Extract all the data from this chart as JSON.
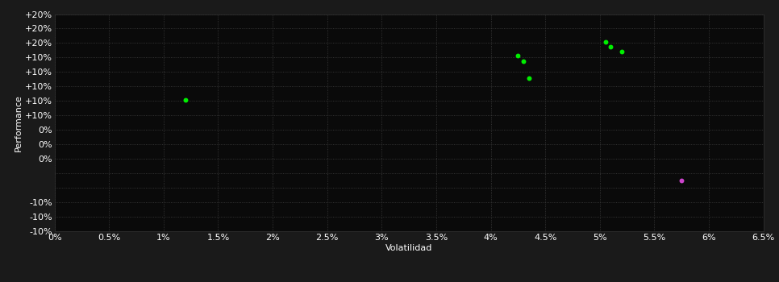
{
  "background_color": "#1a1a1a",
  "plot_bg_color": "#0a0a0a",
  "grid_color": "#404040",
  "text_color": "#ffffff",
  "xlabel": "Volatilidad",
  "ylabel": "Performance",
  "xlim": [
    0,
    0.065
  ],
  "ylim": [
    -0.1,
    0.2
  ],
  "xticks": [
    0.0,
    0.005,
    0.01,
    0.015,
    0.02,
    0.025,
    0.03,
    0.035,
    0.04,
    0.045,
    0.05,
    0.055,
    0.06,
    0.065
  ],
  "xtick_labels": [
    "0%",
    "0.5%",
    "1%",
    "1.5%",
    "2%",
    "2.5%",
    "3%",
    "3.5%",
    "4%",
    "4.5%",
    "5%",
    "5.5%",
    "6%",
    "6.5%"
  ],
  "yticks": [
    -0.1,
    -0.08,
    -0.06,
    -0.04,
    -0.02,
    0.0,
    0.02,
    0.04,
    0.06,
    0.08,
    0.1,
    0.12,
    0.14,
    0.16,
    0.18,
    0.2
  ],
  "ytick_labels_show": [
    -0.1,
    0.0,
    0.1,
    0.2
  ],
  "ytick_label_map": {
    "-0.1": "-10%",
    "0.0": "0%",
    "0.1": "+10%",
    "0.2": "+20%"
  },
  "green_points": [
    [
      0.012,
      0.082
    ],
    [
      0.0425,
      0.143
    ],
    [
      0.043,
      0.135
    ],
    [
      0.0435,
      0.112
    ],
    [
      0.0505,
      0.162
    ],
    [
      0.051,
      0.155
    ],
    [
      0.052,
      0.148
    ]
  ],
  "magenta_points": [
    [
      0.0575,
      -0.03
    ]
  ],
  "green_color": "#00ee00",
  "magenta_color": "#cc44cc",
  "marker_size": 18,
  "font_size": 8
}
